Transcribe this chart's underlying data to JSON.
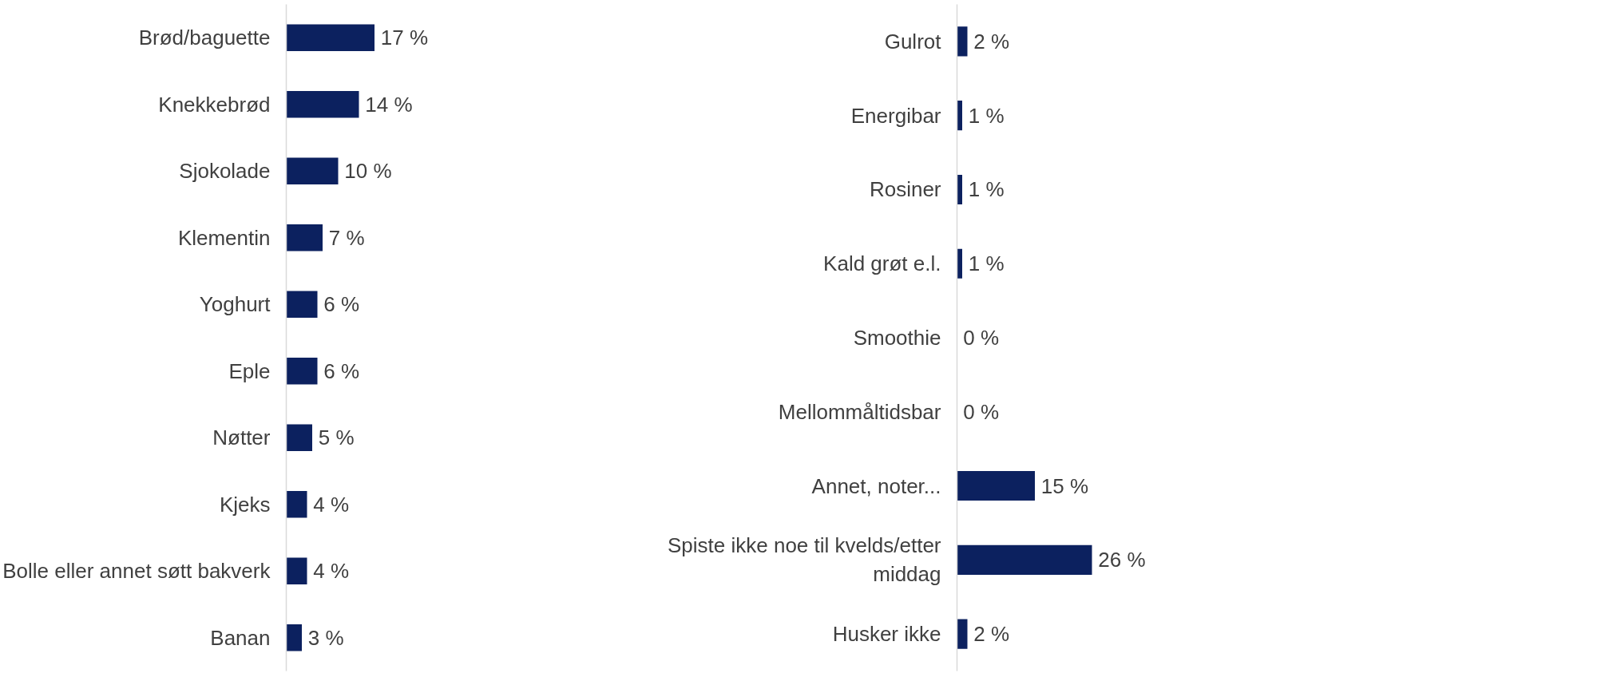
{
  "chart_data": [
    {
      "type": "bar",
      "orientation": "horizontal",
      "color": "#0c215f",
      "categories": [
        "Brød/baguette",
        "Knekkebrød",
        "Sjokolade",
        "Klementin",
        "Yoghurt",
        "Eple",
        "Nøtter",
        "Kjeks",
        "Bolle eller annet søtt bakverk",
        "Banan"
      ],
      "values": [
        17,
        14,
        10,
        7,
        6,
        6,
        5,
        4,
        4,
        3
      ],
      "value_labels": [
        "17 %",
        "14 %",
        "10 %",
        "7 %",
        "6 %",
        "6 %",
        "5 %",
        "4 %",
        "4 %",
        "3 %"
      ]
    },
    {
      "type": "bar",
      "orientation": "horizontal",
      "color": "#0c215f",
      "categories": [
        "Gulrot",
        "Energibar",
        "Rosiner",
        "Kald grøt e.l.",
        "Smoothie",
        "Mellommåltidsbar",
        "Annet, noter...",
        "Spiste ikke noe til kvelds/etter middag",
        "Husker ikke"
      ],
      "values": [
        2,
        1,
        1,
        1,
        0,
        0,
        15,
        26,
        2
      ],
      "value_labels": [
        "2 %",
        "1 %",
        "1 %",
        "1 %",
        "0 %",
        "0 %",
        "15 %",
        "26 %",
        "2 %"
      ]
    }
  ]
}
